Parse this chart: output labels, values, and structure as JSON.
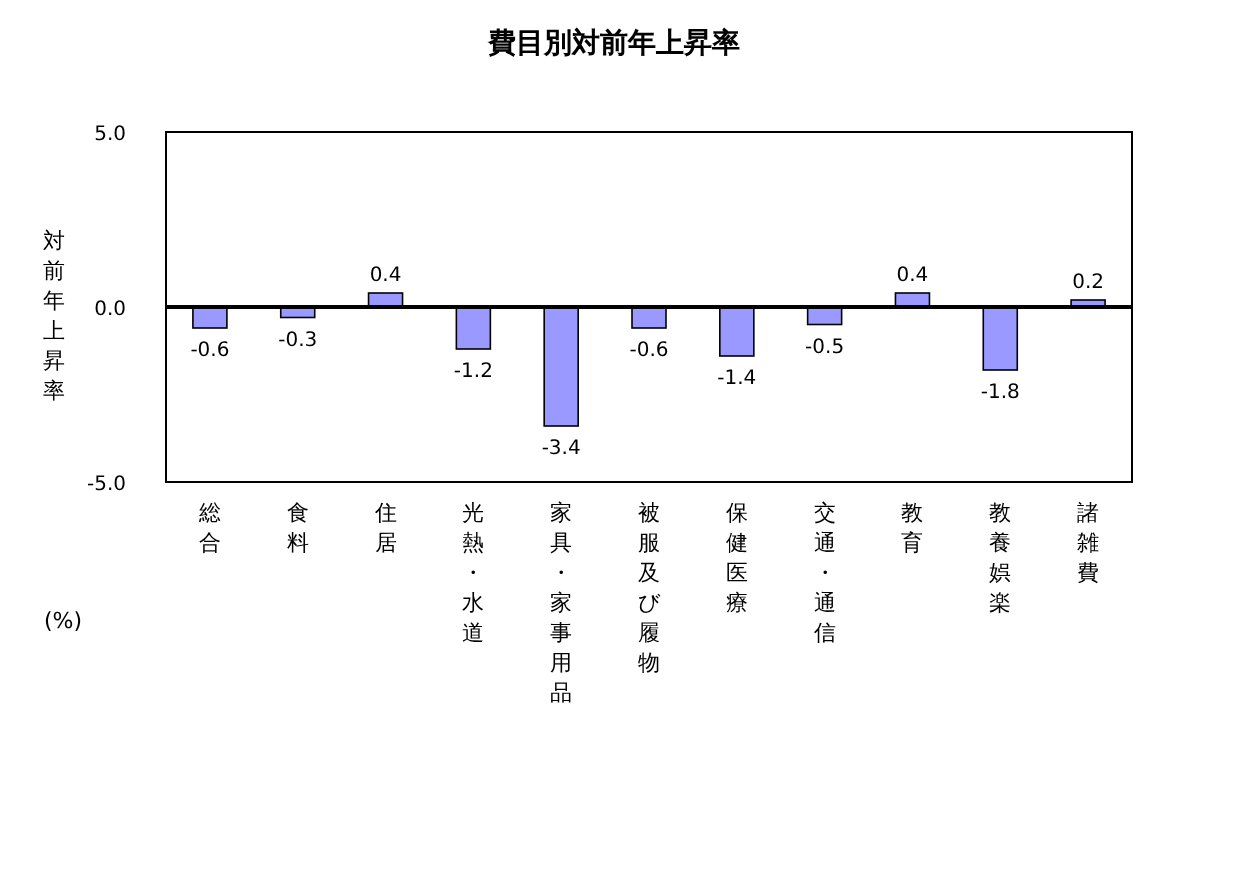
{
  "chart_data": {
    "type": "bar",
    "title": "費目別対前年上昇率",
    "ylabel": "対前年上昇率",
    "annotations": [
      "(%)"
    ],
    "categories": [
      "総合",
      "食料",
      "住居",
      "光熱・水道",
      "家具・家事用品",
      "被服及び履物",
      "保健医療",
      "交通・通信",
      "教育",
      "教養娯楽",
      "諸雑費"
    ],
    "values": [
      -0.6,
      -0.3,
      0.4,
      -1.2,
      -3.4,
      -0.6,
      -1.4,
      -0.5,
      0.4,
      -1.8,
      0.2
    ],
    "color": "#9999ff",
    "ylim": [
      -5,
      5
    ],
    "yticks": [
      {
        "value": 5,
        "label": "5.0"
      },
      {
        "value": 0,
        "label": "0.0"
      },
      {
        "value": -5,
        "label": "-5.0"
      }
    ],
    "data_labels": true
  }
}
